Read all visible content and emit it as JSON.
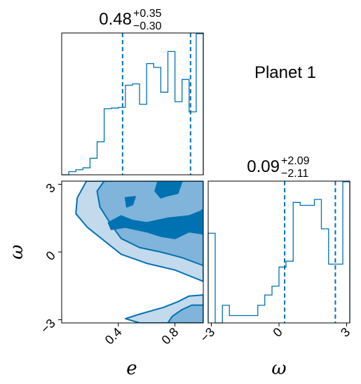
{
  "chart_data": {
    "type": "corner",
    "label": "Planet 1",
    "color": "#0072b2",
    "fill_colors": [
      "#c3d9ec",
      "#80b4da",
      "#0072b2"
    ],
    "parameters": [
      {
        "name": "e",
        "xlabel": "e",
        "summary": {
          "median": "0.48",
          "plus": "+0.35",
          "minus": "−0.30"
        },
        "range": [
          0.0,
          1.0
        ],
        "ticks": [
          {
            "value": 0.4,
            "label": "0.4"
          },
          {
            "value": 0.8,
            "label": "0.8"
          }
        ],
        "quantile_lines": [
          0.43,
          0.91
        ],
        "hist_edges": [
          0.0,
          0.05,
          0.1,
          0.15,
          0.2,
          0.25,
          0.3,
          0.35,
          0.4,
          0.45,
          0.5,
          0.55,
          0.6,
          0.65,
          0.7,
          0.75,
          0.8,
          0.85,
          0.9,
          0.95,
          1.0
        ],
        "hist_counts": [
          0.0,
          0.5,
          0.8,
          1.1,
          2.6,
          5.2,
          10.4,
          10.5,
          10.6,
          14.1,
          14.3,
          11.1,
          17.5,
          16.9,
          13.0,
          19.4,
          11.5,
          15.0,
          9.9,
          22.2
        ]
      },
      {
        "name": "omega",
        "xlabel": "ω",
        "summary": {
          "median": "0.09",
          "plus": "+2.09",
          "minus": "−2.11"
        },
        "range": [
          -3.14,
          3.14
        ],
        "ticks": [
          {
            "value": -3,
            "label": "−3"
          },
          {
            "value": 0,
            "label": "0"
          },
          {
            "value": 3,
            "label": "3"
          }
        ],
        "quantile_lines": [
          0.25,
          2.5
        ],
        "hist_edges": [
          -3.14,
          -2.83,
          -2.51,
          -2.2,
          -1.88,
          -1.57,
          -1.26,
          -0.94,
          -0.63,
          -0.31,
          0.0,
          0.31,
          0.63,
          0.94,
          1.26,
          1.57,
          1.88,
          2.2,
          2.51,
          2.83,
          3.14
        ],
        "hist_counts": [
          6.1,
          0.0,
          1.2,
          0.5,
          0.5,
          0.5,
          0.5,
          1.2,
          1.9,
          2.5,
          3.8,
          4.2,
          8.2,
          8.0,
          8.0,
          8.4,
          6.4,
          4.0,
          4.0,
          9.6
        ]
      }
    ],
    "ylabel_2d": "ω",
    "contours_2d": [
      {
        "level": "outer",
        "polygon": [
          [
            0.175,
            3.14
          ],
          [
            1.0,
            3.14
          ],
          [
            1.0,
            -1.3
          ],
          [
            0.8,
            -0.8
          ],
          [
            0.6,
            -0.5
          ],
          [
            0.42,
            -0.1
          ],
          [
            0.3,
            0.5
          ],
          [
            0.18,
            1.1
          ],
          [
            0.1,
            1.7
          ],
          [
            0.11,
            2.4
          ]
        ]
      },
      {
        "level": "outer",
        "polygon": [
          [
            0.55,
            -3.14
          ],
          [
            1.0,
            -3.14
          ],
          [
            1.0,
            -1.9
          ],
          [
            0.9,
            -1.95
          ],
          [
            0.82,
            -2.2
          ],
          [
            0.72,
            -2.45
          ],
          [
            0.55,
            -2.75
          ],
          [
            0.45,
            -2.95
          ]
        ]
      },
      {
        "level": "middle",
        "polygon": [
          [
            0.3,
            3.14
          ],
          [
            1.0,
            3.14
          ],
          [
            1.0,
            -0.6
          ],
          [
            0.85,
            -0.25
          ],
          [
            0.7,
            0.0
          ],
          [
            0.55,
            0.2
          ],
          [
            0.42,
            0.6
          ],
          [
            0.35,
            1.2
          ],
          [
            0.27,
            2.0
          ],
          [
            0.25,
            2.7
          ]
        ]
      },
      {
        "level": "middle",
        "polygon": [
          [
            0.75,
            -3.14
          ],
          [
            1.0,
            -3.14
          ],
          [
            1.0,
            -2.35
          ],
          [
            0.92,
            -2.35
          ],
          [
            0.85,
            -2.55
          ],
          [
            0.78,
            -2.85
          ]
        ]
      },
      {
        "level": "inner",
        "polygon": [
          [
            0.68,
            3.14
          ],
          [
            0.85,
            3.14
          ],
          [
            0.82,
            2.6
          ],
          [
            0.75,
            2.5
          ],
          [
            0.7,
            2.4
          ],
          [
            0.66,
            2.7
          ]
        ]
      },
      {
        "level": "inner",
        "polygon": [
          [
            0.45,
            2.4
          ],
          [
            0.52,
            2.45
          ],
          [
            0.5,
            2.1
          ],
          [
            0.46,
            2.0
          ]
        ]
      },
      {
        "level": "inner",
        "polygon": [
          [
            0.6,
            1.3
          ],
          [
            0.75,
            1.5
          ],
          [
            0.9,
            1.6
          ],
          [
            0.98,
            1.8
          ],
          [
            1.0,
            1.9
          ],
          [
            1.0,
            0.8
          ],
          [
            0.9,
            0.9
          ],
          [
            0.8,
            0.6
          ],
          [
            0.7,
            0.7
          ],
          [
            0.6,
            0.9
          ],
          [
            0.45,
            1.1
          ],
          [
            0.35,
            1.0
          ],
          [
            0.33,
            1.3
          ],
          [
            0.42,
            1.6
          ],
          [
            0.5,
            1.4
          ]
        ]
      }
    ]
  }
}
